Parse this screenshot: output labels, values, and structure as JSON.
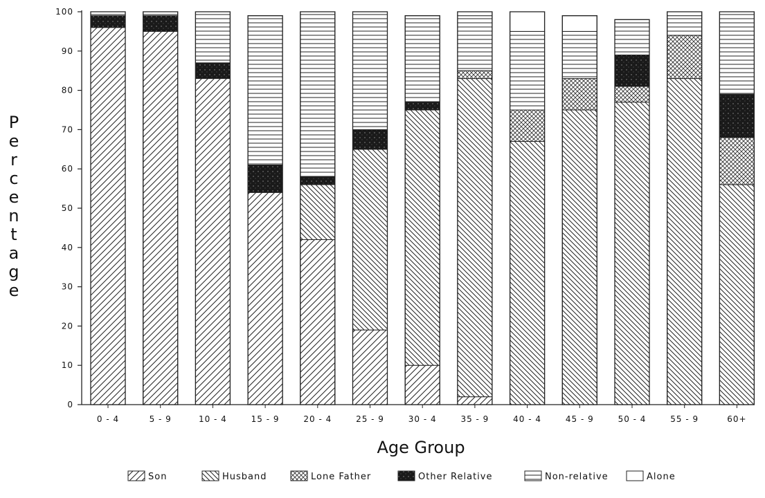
{
  "chart_data": {
    "type": "bar",
    "stacked": true,
    "xlabel": "Age Group",
    "ylabel": "Percentage",
    "ylim": [
      0,
      100
    ],
    "yticks": [
      0,
      10,
      20,
      30,
      40,
      50,
      60,
      70,
      80,
      90,
      100
    ],
    "categories": [
      "0-4",
      "5-9",
      "10-4",
      "15-9",
      "20-4",
      "25-9",
      "30-4",
      "35-9",
      "40-4",
      "45-9",
      "50-4",
      "55-9",
      "60+"
    ],
    "series": [
      {
        "name": "Son",
        "pattern": "diagonal-up-hatch",
        "values": [
          96,
          95,
          83,
          54,
          42,
          19,
          10,
          2,
          0,
          0,
          0,
          0,
          0
        ]
      },
      {
        "name": "Husband",
        "pattern": "diagonal-down-hatch",
        "values": [
          0,
          0,
          0,
          0,
          14,
          46,
          65,
          81,
          67,
          75,
          77,
          83,
          56
        ]
      },
      {
        "name": "Lone Father",
        "pattern": "cross-hatch",
        "values": [
          0,
          0,
          0,
          0,
          0,
          0,
          0,
          2,
          8,
          8,
          4,
          11,
          12
        ]
      },
      {
        "name": "Other Relative",
        "pattern": "solid-dark",
        "values": [
          3,
          4,
          4,
          7,
          2,
          5,
          2,
          0,
          0,
          0,
          8,
          0,
          11
        ]
      },
      {
        "name": "Non-relative",
        "pattern": "horizontal-lines",
        "values": [
          1,
          1,
          13,
          38,
          42,
          30,
          22,
          14,
          20,
          12,
          9,
          5,
          21
        ]
      },
      {
        "name": "Alone",
        "pattern": "blank",
        "values": [
          0,
          0,
          0,
          0,
          0,
          0,
          0,
          1,
          5,
          4,
          0,
          1,
          0
        ]
      }
    ],
    "legend_position": "bottom",
    "grid": false,
    "colors": {
      "ink": "#111111",
      "background": "#ffffff"
    }
  }
}
